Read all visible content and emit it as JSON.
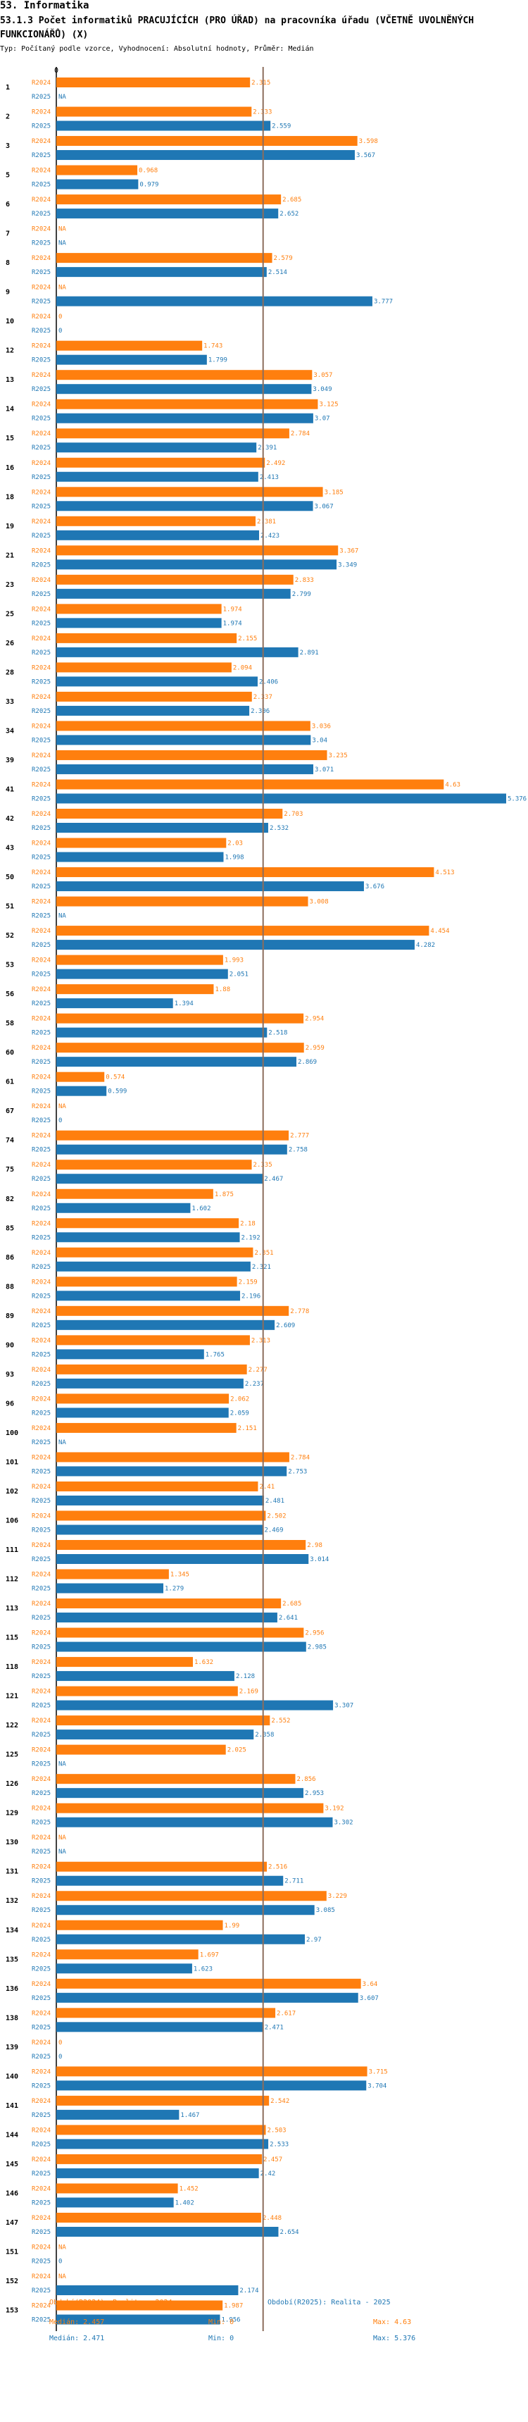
{
  "header": {
    "section": "53. Informatika",
    "title": "53.1.3 Počet informatiků PRACUJÍCÍCH (PRO ÚŘAD) na pracovníka úřadu (VČETNĚ UVOLNĚNÝCH FUNKCIONÁŘŮ) (X)",
    "subtitle": "Typ: Počítaný podle vzorce, Vyhodnocení: Absolutní hodnoty, Průměr: Medián"
  },
  "colors": {
    "r2024": "#ff7f0e",
    "r2025": "#1f77b4",
    "median_line": "#8c6d5c",
    "axis": "#000000"
  },
  "chart_data": {
    "type": "bar",
    "orientation": "horizontal",
    "xlim": [
      0,
      5.376
    ],
    "axis_tick_label": "0",
    "series": [
      {
        "name": "R2024",
        "label": "R2024"
      },
      {
        "name": "R2025",
        "label": "R2025"
      }
    ],
    "na_label": "NA",
    "median_value": 2.471,
    "rows": [
      {
        "id": "1",
        "r2024": 2.315,
        "r2025": null,
        "t2024": "2.315",
        "t2025": "NA"
      },
      {
        "id": "2",
        "r2024": 2.333,
        "r2025": 2.559,
        "t2024": "2.333",
        "t2025": "2.559"
      },
      {
        "id": "3",
        "r2024": 3.598,
        "r2025": 3.567,
        "t2024": "3.598",
        "t2025": "3.567"
      },
      {
        "id": "5",
        "r2024": 0.968,
        "r2025": 0.979,
        "t2024": "0.968",
        "t2025": "0.979"
      },
      {
        "id": "6",
        "r2024": 2.685,
        "r2025": 2.652,
        "t2024": "2.685",
        "t2025": "2.652"
      },
      {
        "id": "7",
        "r2024": null,
        "r2025": null,
        "t2024": "NA",
        "t2025": "NA"
      },
      {
        "id": "8",
        "r2024": 2.579,
        "r2025": 2.514,
        "t2024": "2.579",
        "t2025": "2.514"
      },
      {
        "id": "9",
        "r2024": null,
        "r2025": 3.777,
        "t2024": "NA",
        "t2025": "3.777"
      },
      {
        "id": "10",
        "r2024": 0,
        "r2025": 0,
        "t2024": "0",
        "t2025": "0"
      },
      {
        "id": "12",
        "r2024": 1.743,
        "r2025": 1.799,
        "t2024": "1.743",
        "t2025": "1.799"
      },
      {
        "id": "13",
        "r2024": 3.057,
        "r2025": 3.049,
        "t2024": "3.057",
        "t2025": "3.049"
      },
      {
        "id": "14",
        "r2024": 3.125,
        "r2025": 3.07,
        "t2024": "3.125",
        "t2025": "3.07"
      },
      {
        "id": "15",
        "r2024": 2.784,
        "r2025": 2.391,
        "t2024": "2.784",
        "t2025": "2.391"
      },
      {
        "id": "16",
        "r2024": 2.492,
        "r2025": 2.413,
        "t2024": "2.492",
        "t2025": "2.413"
      },
      {
        "id": "18",
        "r2024": 3.185,
        "r2025": 3.067,
        "t2024": "3.185",
        "t2025": "3.067"
      },
      {
        "id": "19",
        "r2024": 2.381,
        "r2025": 2.423,
        "t2024": "2.381",
        "t2025": "2.423"
      },
      {
        "id": "21",
        "r2024": 3.367,
        "r2025": 3.349,
        "t2024": "3.367",
        "t2025": "3.349"
      },
      {
        "id": "23",
        "r2024": 2.833,
        "r2025": 2.799,
        "t2024": "2.833",
        "t2025": "2.799"
      },
      {
        "id": "25",
        "r2024": 1.974,
        "r2025": 1.974,
        "t2024": "1.974",
        "t2025": "1.974"
      },
      {
        "id": "26",
        "r2024": 2.155,
        "r2025": 2.891,
        "t2024": "2.155",
        "t2025": "2.891"
      },
      {
        "id": "28",
        "r2024": 2.094,
        "r2025": 2.406,
        "t2024": "2.094",
        "t2025": "2.406"
      },
      {
        "id": "33",
        "r2024": 2.337,
        "r2025": 2.306,
        "t2024": "2.337",
        "t2025": "2.306"
      },
      {
        "id": "34",
        "r2024": 3.036,
        "r2025": 3.04,
        "t2024": "3.036",
        "t2025": "3.04"
      },
      {
        "id": "39",
        "r2024": 3.235,
        "r2025": 3.071,
        "t2024": "3.235",
        "t2025": "3.071"
      },
      {
        "id": "41",
        "r2024": 4.63,
        "r2025": 5.376,
        "t2024": "4.63",
        "t2025": "5.376"
      },
      {
        "id": "42",
        "r2024": 2.703,
        "r2025": 2.532,
        "t2024": "2.703",
        "t2025": "2.532"
      },
      {
        "id": "43",
        "r2024": 2.03,
        "r2025": 1.998,
        "t2024": "2.03",
        "t2025": "1.998"
      },
      {
        "id": "50",
        "r2024": 4.513,
        "r2025": 3.676,
        "t2024": "4.513",
        "t2025": "3.676"
      },
      {
        "id": "51",
        "r2024": 3.008,
        "r2025": null,
        "t2024": "3.008",
        "t2025": "NA"
      },
      {
        "id": "52",
        "r2024": 4.454,
        "r2025": 4.282,
        "t2024": "4.454",
        "t2025": "4.282"
      },
      {
        "id": "53",
        "r2024": 1.993,
        "r2025": 2.051,
        "t2024": "1.993",
        "t2025": "2.051"
      },
      {
        "id": "56",
        "r2024": 1.88,
        "r2025": 1.394,
        "t2024": "1.88",
        "t2025": "1.394"
      },
      {
        "id": "58",
        "r2024": 2.954,
        "r2025": 2.518,
        "t2024": "2.954",
        "t2025": "2.518"
      },
      {
        "id": "60",
        "r2024": 2.959,
        "r2025": 2.869,
        "t2024": "2.959",
        "t2025": "2.869"
      },
      {
        "id": "61",
        "r2024": 0.574,
        "r2025": 0.599,
        "t2024": "0.574",
        "t2025": "0.599"
      },
      {
        "id": "67",
        "r2024": null,
        "r2025": 0,
        "t2024": "NA",
        "t2025": "0"
      },
      {
        "id": "74",
        "r2024": 2.777,
        "r2025": 2.758,
        "t2024": "2.777",
        "t2025": "2.758"
      },
      {
        "id": "75",
        "r2024": 2.335,
        "r2025": 2.467,
        "t2024": "2.335",
        "t2025": "2.467"
      },
      {
        "id": "82",
        "r2024": 1.875,
        "r2025": 1.602,
        "t2024": "1.875",
        "t2025": "1.602"
      },
      {
        "id": "85",
        "r2024": 2.18,
        "r2025": 2.192,
        "t2024": "2.18",
        "t2025": "2.192"
      },
      {
        "id": "86",
        "r2024": 2.351,
        "r2025": 2.321,
        "t2024": "2.351",
        "t2025": "2.321"
      },
      {
        "id": "88",
        "r2024": 2.159,
        "r2025": 2.196,
        "t2024": "2.159",
        "t2025": "2.196"
      },
      {
        "id": "89",
        "r2024": 2.778,
        "r2025": 2.609,
        "t2024": "2.778",
        "t2025": "2.609"
      },
      {
        "id": "90",
        "r2024": 2.313,
        "r2025": 1.765,
        "t2024": "2.313",
        "t2025": "1.765"
      },
      {
        "id": "93",
        "r2024": 2.277,
        "r2025": 2.237,
        "t2024": "2.277",
        "t2025": "2.237"
      },
      {
        "id": "96",
        "r2024": 2.062,
        "r2025": 2.059,
        "t2024": "2.062",
        "t2025": "2.059"
      },
      {
        "id": "100",
        "r2024": 2.151,
        "r2025": null,
        "t2024": "2.151",
        "t2025": "NA"
      },
      {
        "id": "101",
        "r2024": 2.784,
        "r2025": 2.753,
        "t2024": "2.784",
        "t2025": "2.753"
      },
      {
        "id": "102",
        "r2024": 2.41,
        "r2025": 2.481,
        "t2024": "2.41",
        "t2025": "2.481"
      },
      {
        "id": "106",
        "r2024": 2.502,
        "r2025": 2.469,
        "t2024": "2.502",
        "t2025": "2.469"
      },
      {
        "id": "111",
        "r2024": 2.98,
        "r2025": 3.014,
        "t2024": "2.98",
        "t2025": "3.014"
      },
      {
        "id": "112",
        "r2024": 1.345,
        "r2025": 1.279,
        "t2024": "1.345",
        "t2025": "1.279"
      },
      {
        "id": "113",
        "r2024": 2.685,
        "r2025": 2.641,
        "t2024": "2.685",
        "t2025": "2.641"
      },
      {
        "id": "115",
        "r2024": 2.956,
        "r2025": 2.985,
        "t2024": "2.956",
        "t2025": "2.985"
      },
      {
        "id": "118",
        "r2024": 1.632,
        "r2025": 2.128,
        "t2024": "1.632",
        "t2025": "2.128"
      },
      {
        "id": "121",
        "r2024": 2.169,
        "r2025": 3.307,
        "t2024": "2.169",
        "t2025": "3.307"
      },
      {
        "id": "122",
        "r2024": 2.552,
        "r2025": 2.358,
        "t2024": "2.552",
        "t2025": "2.358"
      },
      {
        "id": "125",
        "r2024": 2.025,
        "r2025": null,
        "t2024": "2.025",
        "t2025": "NA"
      },
      {
        "id": "126",
        "r2024": 2.856,
        "r2025": 2.953,
        "t2024": "2.856",
        "t2025": "2.953"
      },
      {
        "id": "129",
        "r2024": 3.192,
        "r2025": 3.302,
        "t2024": "3.192",
        "t2025": "3.302"
      },
      {
        "id": "130",
        "r2024": null,
        "r2025": null,
        "t2024": "NA",
        "t2025": "NA"
      },
      {
        "id": "131",
        "r2024": 2.516,
        "r2025": 2.711,
        "t2024": "2.516",
        "t2025": "2.711"
      },
      {
        "id": "132",
        "r2024": 3.229,
        "r2025": 3.085,
        "t2024": "3.229",
        "t2025": "3.085"
      },
      {
        "id": "134",
        "r2024": 1.99,
        "r2025": 2.97,
        "t2024": "1.99",
        "t2025": "2.97"
      },
      {
        "id": "135",
        "r2024": 1.697,
        "r2025": 1.623,
        "t2024": "1.697",
        "t2025": "1.623"
      },
      {
        "id": "136",
        "r2024": 3.64,
        "r2025": 3.607,
        "t2024": "3.64",
        "t2025": "3.607"
      },
      {
        "id": "138",
        "r2024": 2.617,
        "r2025": 2.471,
        "t2024": "2.617",
        "t2025": "2.471"
      },
      {
        "id": "139",
        "r2024": 0,
        "r2025": 0,
        "t2024": "0",
        "t2025": "0"
      },
      {
        "id": "140",
        "r2024": 3.715,
        "r2025": 3.704,
        "t2024": "3.715",
        "t2025": "3.704"
      },
      {
        "id": "141",
        "r2024": 2.542,
        "r2025": 1.467,
        "t2024": "2.542",
        "t2025": "1.467"
      },
      {
        "id": "144",
        "r2024": 2.503,
        "r2025": 2.533,
        "t2024": "2.503",
        "t2025": "2.533"
      },
      {
        "id": "145",
        "r2024": 2.457,
        "r2025": 2.42,
        "t2024": "2.457",
        "t2025": "2.42"
      },
      {
        "id": "146",
        "r2024": 1.452,
        "r2025": 1.402,
        "t2024": "1.452",
        "t2025": "1.402"
      },
      {
        "id": "147",
        "r2024": 2.448,
        "r2025": 2.654,
        "t2024": "2.448",
        "t2025": "2.654"
      },
      {
        "id": "151",
        "r2024": null,
        "r2025": 0,
        "t2024": "NA",
        "t2025": "0"
      },
      {
        "id": "152",
        "r2024": null,
        "r2025": 2.174,
        "t2024": "NA",
        "t2025": "2.174"
      },
      {
        "id": "153",
        "r2024": 1.987,
        "r2025": 1.956,
        "t2024": "1.987",
        "t2025": "1.956"
      }
    ]
  },
  "legend": {
    "r2024": {
      "title": "Období(R2024): Realita - 2024",
      "median": "Medián: 2.457",
      "min": "Min: 0",
      "max": "Max: 4.63"
    },
    "r2025": {
      "title": "Období(R2025): Realita - 2025",
      "median": "Medián: 2.471",
      "min": "Min: 0",
      "max": "Max: 5.376"
    }
  }
}
